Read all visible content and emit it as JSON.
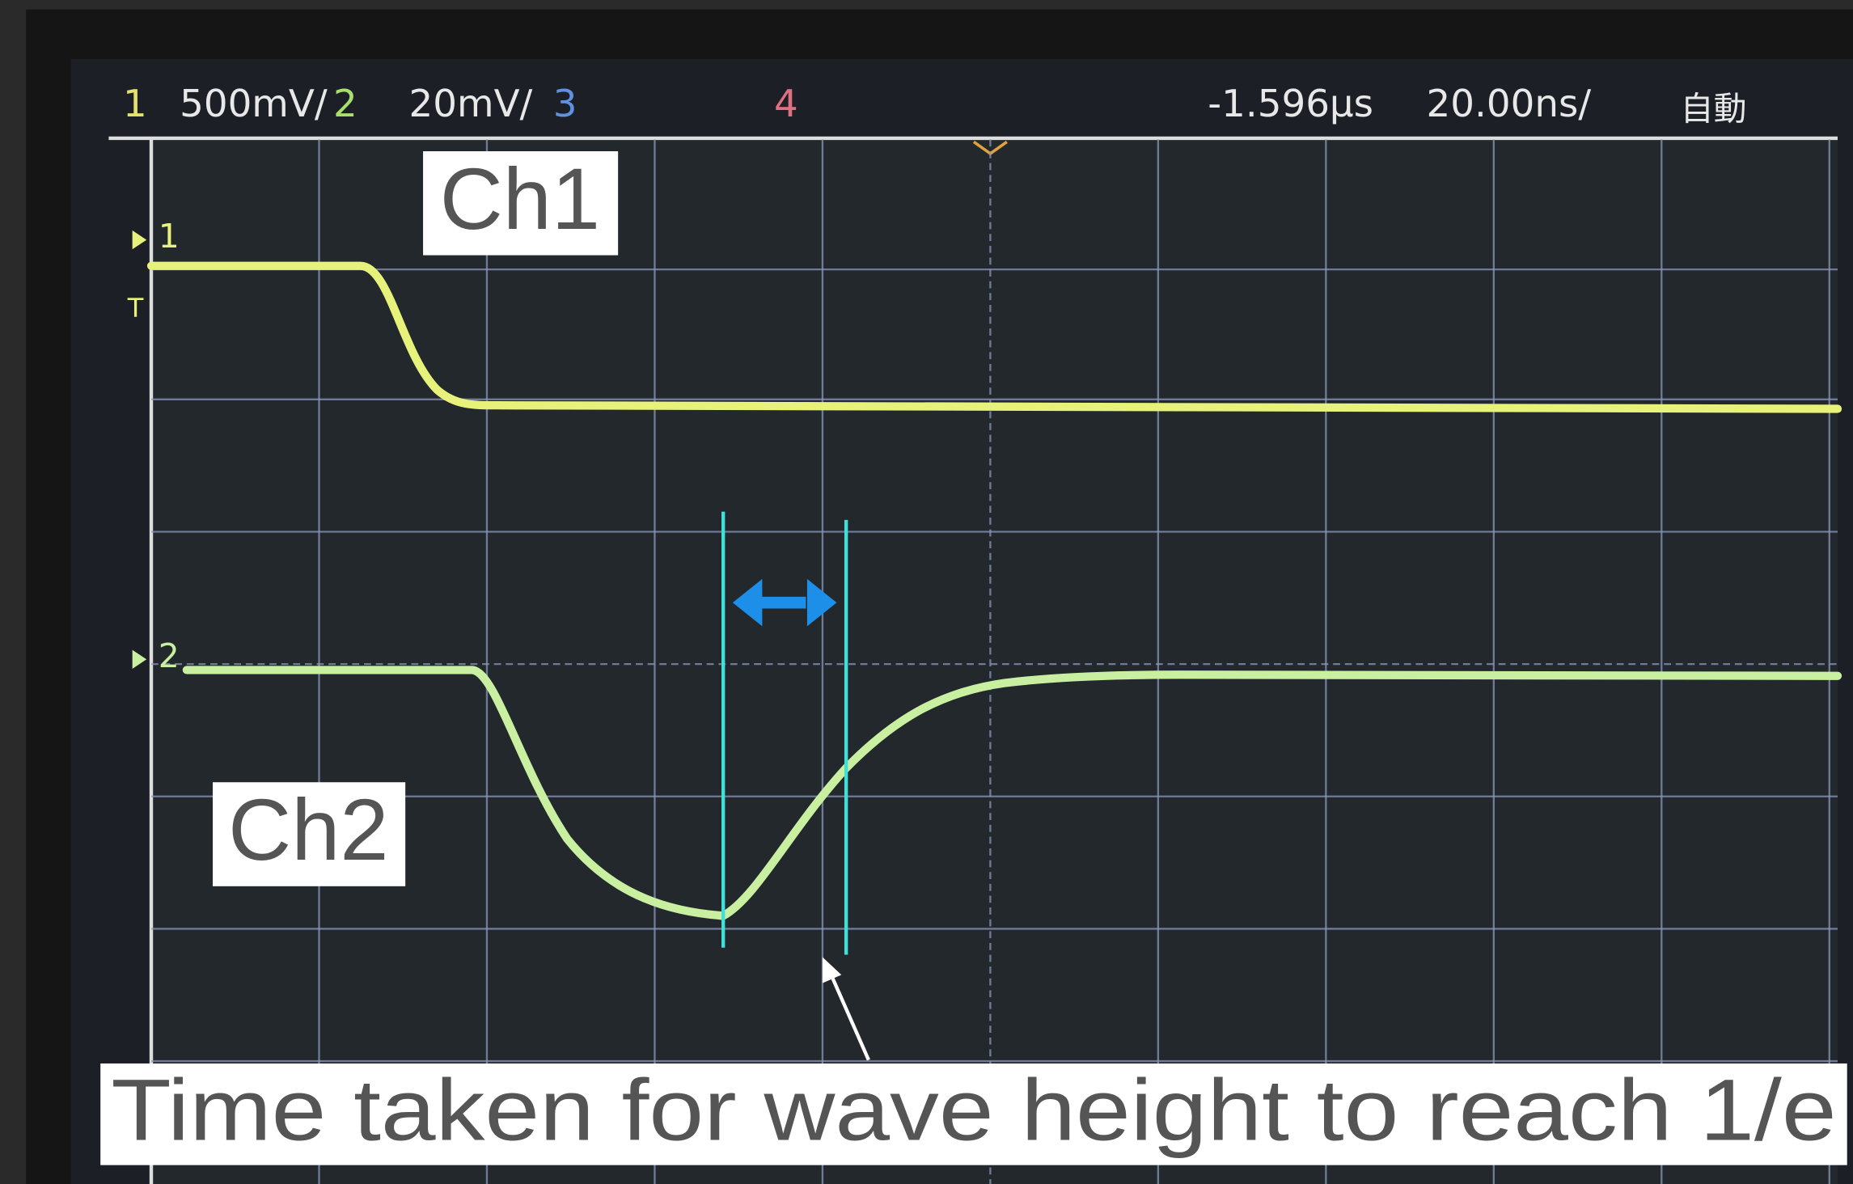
{
  "status_bar": {
    "ch1_label": "1",
    "ch1_scale": "500mV/",
    "ch2_label": "2",
    "ch2_scale": "20mV/",
    "ch3_label": "3",
    "ch4_label": "4",
    "delay": "-1.596µs",
    "timebase": "20.00ns/",
    "mode": "自動"
  },
  "markers": {
    "ch1": "1",
    "ch2": "2",
    "trigger": "T"
  },
  "labels": {
    "ch1": "Ch1",
    "ch2": "Ch2"
  },
  "caption": "Time taken for wave height to reach 1/e"
}
